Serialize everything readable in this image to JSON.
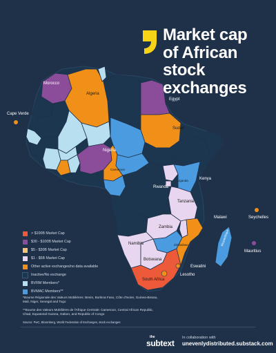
{
  "title": {
    "lines": [
      "Market cap",
      "of African",
      "stock",
      "exchanges"
    ]
  },
  "colors": {
    "background": "#1f3149",
    "gt_100b": "#ec5a3a",
    "b30_100": "#8b4d9a",
    "b5_30": "#f09018",
    "b1_5": "#e8d6f0",
    "other_active": "#f09018",
    "inactive": "#1c3650",
    "brvm": "#b8dff0",
    "bvmac": "#4a9be0",
    "brand_yellow": "#f7d516"
  },
  "icons": {
    "brand_mark": "subtext-bracket-logo"
  },
  "map": {
    "labels": {
      "morocco": "Morocco",
      "algeria": "Algeria",
      "egypt": "Egypt",
      "sudan": "Sudan",
      "nigeria": "Nigeria",
      "cameroon": "Cameroon",
      "rwanda": "Rwanda",
      "uganda": "Uganda",
      "kenya": "Kenya",
      "tanzania": "Tanzania",
      "malawi": "Malawi",
      "zambia": "Zambia",
      "zimbabwe": "Zimbabwe",
      "namibia": "Namibia",
      "botswana": "Botswana",
      "mozambique": "Mozambique",
      "eswatini": "Eswatini",
      "lesotho": "Lesotho",
      "south_africa": "South Africa",
      "cape_verde": "Cape Verde",
      "seychelles": "Seychelles",
      "mauritius": "Mauritius"
    }
  },
  "legend": {
    "items": [
      {
        "label": "> $100B Market Cap",
        "color": "#ec5a3a"
      },
      {
        "label": "$30 - $100B Market Cap",
        "color": "#8b4d9a"
      },
      {
        "label": "$5 - $30B Market Cap",
        "color": "#f5c27a"
      },
      {
        "label": "$1 - $5B Market Cap",
        "color": "#e8d6f0"
      },
      {
        "label": "Other active exchanges/no data available",
        "color": "#f09018"
      },
      {
        "label": "Inactive/No exchange",
        "color": "#1c3650"
      },
      {
        "label": "BVRM Members*",
        "color": "#b8dff0"
      },
      {
        "label": "BVMAC Members**",
        "color": "#4a9be0"
      }
    ]
  },
  "notes": {
    "brvm": "*Bourse Régionale des Valeurs Mobilières: Benin, Burkina Faso, Côte d'Ivoire, Guinea-Bissau, Mali, Niger, Senegal and Togo",
    "bvmac": "**Bourse des Valeurs Mobilières de l'Afrique Centrale: Cameroon, Central African Republic, Chad, Equatorial Guinea, Gabon, and Republic of Congo"
  },
  "source": "Source: PwC, Bloomberg, World Federation of Exchanges, stock exchanges",
  "footer": {
    "logo_the": "the",
    "logo_sub": "subtext",
    "collab_line1": "In collaboration with",
    "collab_line2": "unevenlydistributed.substack.com"
  }
}
